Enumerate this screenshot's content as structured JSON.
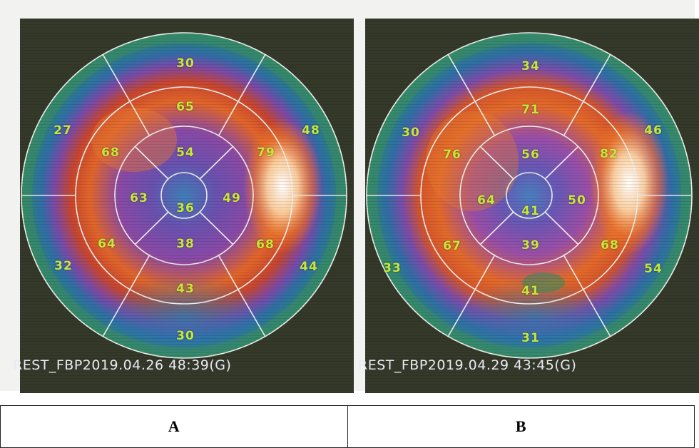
{
  "panels": [
    {
      "footer": "REST_FBP2019.04.26 48:39(G)",
      "segments": {
        "outer": [
          "30",
          "48",
          "44",
          "30",
          "32",
          "27"
        ],
        "middle": [
          "65",
          "79",
          "68",
          "43",
          "64",
          "68"
        ],
        "inner": [
          "54",
          "49",
          "38",
          "63"
        ],
        "apex": "36"
      }
    },
    {
      "footer": "REST_FBP2019.04.29 43:45(G)",
      "segments": {
        "outer": [
          "34",
          "46",
          "54",
          "31",
          "33",
          "30"
        ],
        "middle": [
          "71",
          "82",
          "68",
          "41",
          "67",
          "76"
        ],
        "inner": [
          "56",
          "50",
          "39",
          "64"
        ],
        "apex": "41"
      }
    }
  ],
  "caption": {
    "left": "A",
    "right": "B"
  }
}
